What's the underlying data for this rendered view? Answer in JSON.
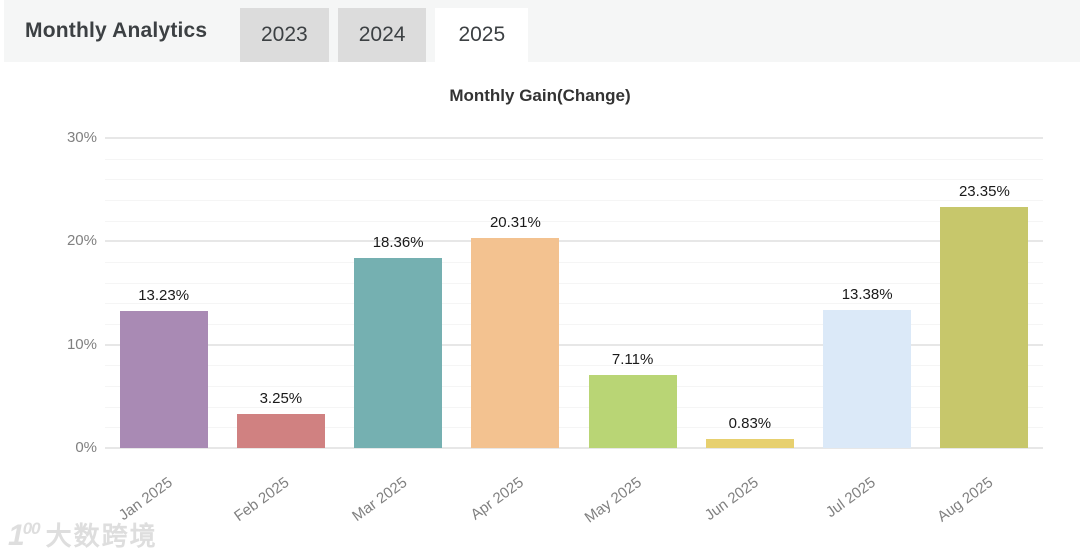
{
  "header": {
    "title": "Monthly Analytics",
    "tabs": [
      {
        "label": "2023",
        "active": false
      },
      {
        "label": "2024",
        "active": false
      },
      {
        "label": "2025",
        "active": true
      }
    ]
  },
  "chart_data": {
    "type": "bar",
    "title": "Monthly Gain(Change)",
    "categories": [
      "Jan 2025",
      "Feb 2025",
      "Mar 2025",
      "Apr 2025",
      "May 2025",
      "Jun 2025",
      "Jul 2025",
      "Aug 2025"
    ],
    "values": [
      13.23,
      3.25,
      18.36,
      20.31,
      7.11,
      0.83,
      13.38,
      23.35
    ],
    "value_labels": [
      "13.23%",
      "3.25%",
      "18.36%",
      "20.31%",
      "7.11%",
      "0.83%",
      "13.38%",
      "23.35%"
    ],
    "bar_colors": [
      "#a98ab4",
      "#d08181",
      "#75b0b1",
      "#f3c290",
      "#b9d575",
      "#e7d06f",
      "#dbe9f8",
      "#c7c76b"
    ],
    "xlabel": "",
    "ylabel": "",
    "ylim": [
      0,
      30
    ],
    "y_ticks": [
      {
        "value": 0,
        "label": "0%"
      },
      {
        "value": 10,
        "label": "10%"
      },
      {
        "value": 20,
        "label": "20%"
      },
      {
        "value": 30,
        "label": "30%"
      }
    ],
    "minor_grid_step": 2,
    "grid": true,
    "legend": "none",
    "x_label_rotation_deg": -36
  },
  "watermark": {
    "logo": "1",
    "logo_sup": "00",
    "text": "大数跨境"
  }
}
